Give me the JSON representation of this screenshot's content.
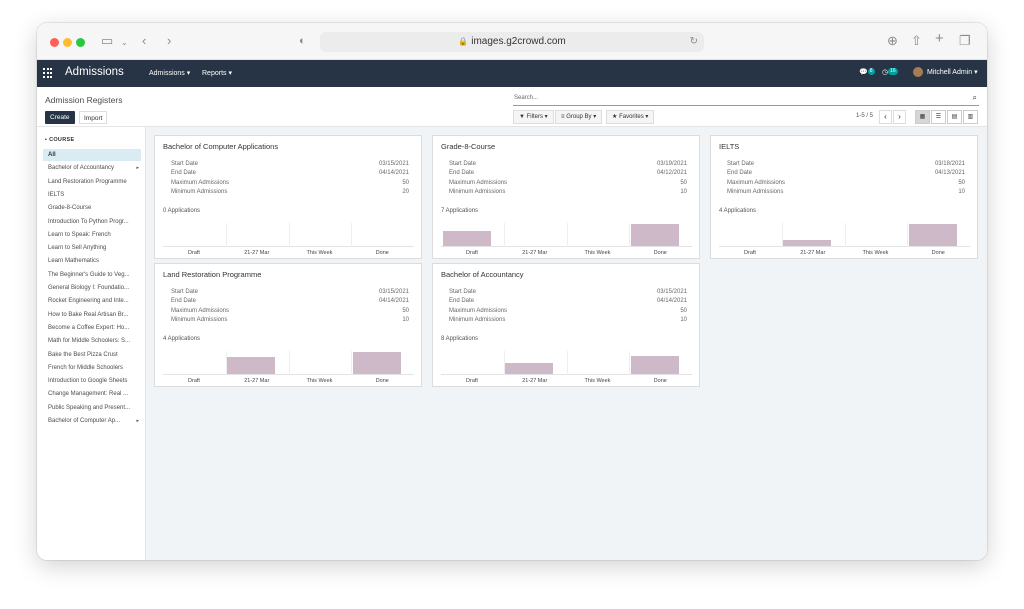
{
  "browser": {
    "url": "images.g2crowd.com"
  },
  "nav": {
    "app_name": "Admissions",
    "menus": [
      "Admissions",
      "Reports"
    ],
    "chat_badge": "8",
    "activity_badge": "16",
    "user": "Mitchell Admin"
  },
  "control": {
    "breadcrumb": "Admission Registers",
    "create": "Create",
    "import": "Import",
    "search_placeholder": "Search...",
    "filters": "Filters",
    "group_by": "Group By",
    "favorites": "Favorites",
    "pager": "1-5 / 5"
  },
  "sidebar": {
    "header": "COURSE",
    "items": [
      "All",
      "Bachelor of Accountancy",
      "Land Restoration Programme",
      "IELTS",
      "Grade-8-Course",
      "Introduction To Python Progr...",
      "Learn to Speak: French",
      "Learn to Sell Anything",
      "Learn Mathematics",
      "The Beginner's Guide to Veg...",
      "General Biology I: Foundatio...",
      "Rocket Engineering and Inte...",
      "How to Bake Real Artisan Br...",
      "Become a Coffee Expert: Ho...",
      "Math for Middle Schoolers: S...",
      "Bake the Best Pizza Crust",
      "French for Middle Schoolers",
      "Introduction to Google Sheets",
      "Change Management: Real ...",
      "Public Speaking and Present...",
      "Bachelor of Computer Ap..."
    ]
  },
  "labels": {
    "start": "Start Date",
    "end": "End Date",
    "max": "Maximum Admissions",
    "min": "Minimum Admissions"
  },
  "graph_labels": [
    "Draft",
    "21-27 Mar",
    "This Week",
    "Done"
  ],
  "cards": [
    {
      "title": "Bachelor of Computer Applications",
      "start": "03/15/2021",
      "end": "04/14/2021",
      "max": "50",
      "min": "20",
      "apps": "0 Applications",
      "bars": [
        0,
        0,
        0,
        0
      ]
    },
    {
      "title": "Grade-8-Course",
      "start": "03/19/2021",
      "end": "04/12/2021",
      "max": "50",
      "min": "10",
      "apps": "7 Applications",
      "bars": [
        0.7,
        0,
        0,
        1.0
      ]
    },
    {
      "title": "IELTS",
      "start": "03/18/2021",
      "end": "04/13/2021",
      "max": "50",
      "min": "10",
      "apps": "4 Applications",
      "bars": [
        0,
        0.25,
        0,
        1.0
      ]
    },
    {
      "title": "Land Restoration Programme",
      "start": "03/15/2021",
      "end": "04/14/2021",
      "max": "50",
      "min": "10",
      "apps": "4 Applications",
      "bars": [
        0,
        0.75,
        0,
        1.0
      ]
    },
    {
      "title": "Bachelor of Accountancy",
      "start": "03/15/2021",
      "end": "04/14/2021",
      "max": "50",
      "min": "10",
      "apps": "8 Applications",
      "bars": [
        0,
        0.5,
        0,
        0.8
      ]
    }
  ]
}
